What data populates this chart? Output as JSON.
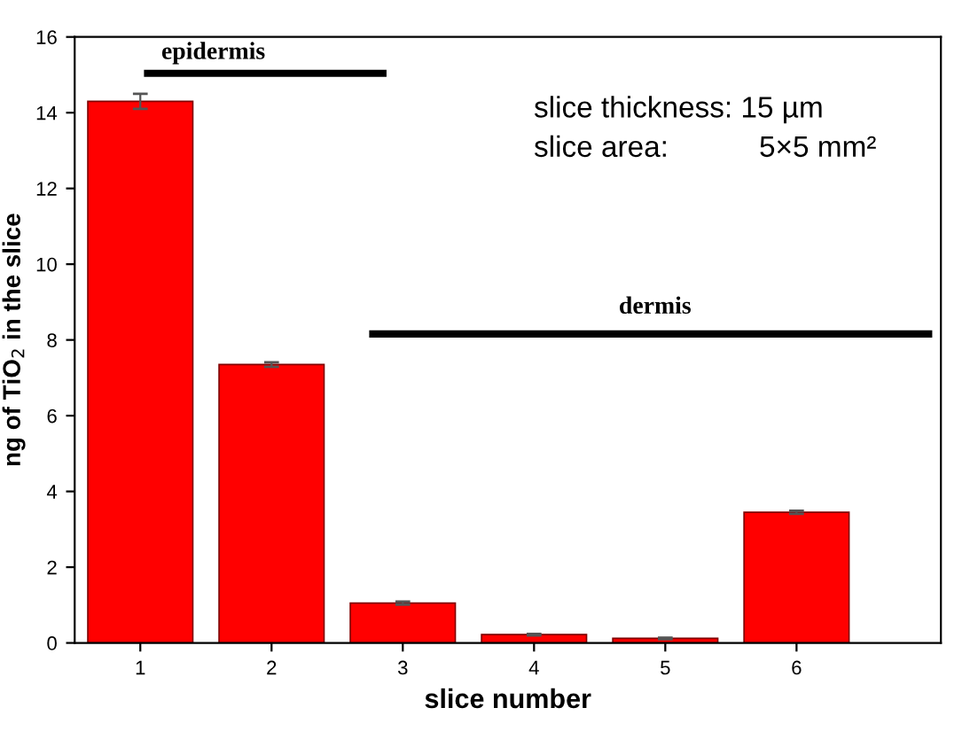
{
  "chart_data": {
    "type": "bar",
    "x": [
      1,
      2,
      3,
      4,
      5,
      6
    ],
    "values": [
      14.3,
      7.35,
      1.05,
      0.22,
      0.12,
      3.45
    ],
    "errors": [
      0.2,
      0.06,
      0.04,
      0.02,
      0.02,
      0.04
    ],
    "color": "#ff0000",
    "xlabel": "slice number",
    "ylabel": "ng of TiO$_{2}$ in the slice",
    "xlim": [
      0.5,
      7.1
    ],
    "xticks": [
      1,
      2,
      3,
      4,
      5,
      6
    ],
    "ylim": [
      0,
      16
    ],
    "yticks": [
      0,
      2,
      4,
      6,
      8,
      10,
      12,
      14,
      16
    ],
    "annotations": [
      "epidermis",
      "dermis",
      "slice thickness: 15 µm",
      "slice area:",
      "5×5 mm²"
    ],
    "grid": false,
    "legend": false
  }
}
